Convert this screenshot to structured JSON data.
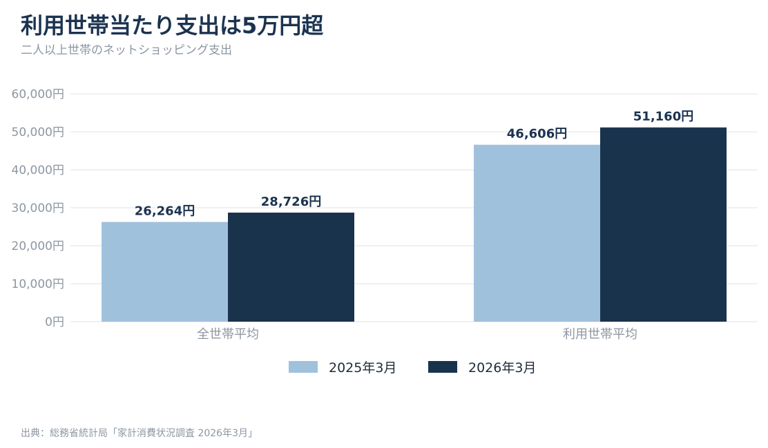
{
  "header": {
    "title": "利用世帯当たり支出は5万円超",
    "subtitle": "二人以上世帯のネットショッピング支出"
  },
  "footer": {
    "source": "出典：総務省統計局「家計消費状況調査 2026年3月」"
  },
  "colors": {
    "series_2025": "#a0c1dc",
    "series_2026": "#1a334d",
    "grid": "#e6e6e6",
    "tick_text": "#8d96a1",
    "label_text": "#1b3350"
  },
  "chart_data": {
    "type": "bar",
    "categories": [
      "全世帯平均",
      "利用世帯平均"
    ],
    "series": [
      {
        "name": "2025年3月",
        "values": [
          26264,
          46606
        ],
        "labels": [
          "26,264円",
          "46,606円"
        ]
      },
      {
        "name": "2026年3月",
        "values": [
          28726,
          51160
        ],
        "labels": [
          "28,726円",
          "51,160円"
        ]
      }
    ],
    "ylim": [
      0,
      60000
    ],
    "yticks": [
      0,
      10000,
      20000,
      30000,
      40000,
      50000,
      60000
    ],
    "ytick_labels": [
      "0円",
      "10,000円",
      "20,000円",
      "30,000円",
      "40,000円",
      "50,000円",
      "60,000円"
    ],
    "grid": true,
    "legend_position": "bottom"
  }
}
